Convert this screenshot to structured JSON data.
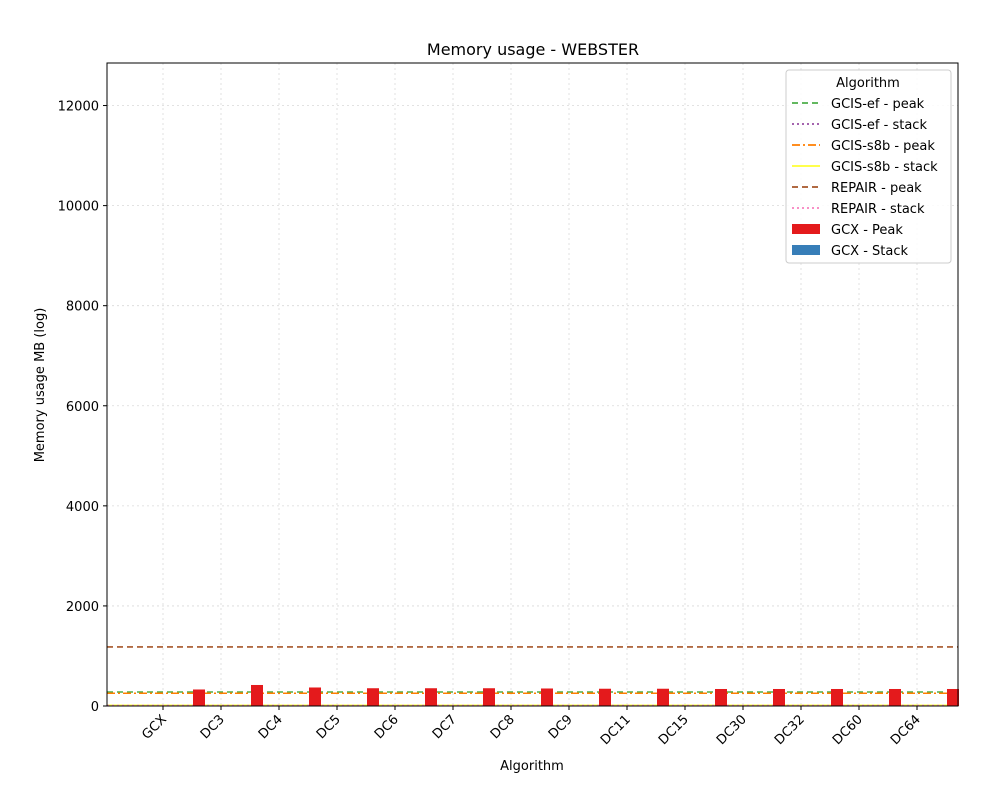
{
  "chart_data": {
    "type": "bar",
    "title": "Memory usage -  WEBSTER",
    "xlabel": "Algorithm",
    "ylabel": "Memory usage MB (log)",
    "ylim": [
      0,
      12850
    ],
    "yticks": [
      0,
      2000,
      4000,
      6000,
      8000,
      10000,
      12000
    ],
    "grid": true,
    "categories": [
      "GCX",
      "DC3",
      "DC4",
      "DC5",
      "DC6",
      "DC7",
      "DC8",
      "DC9",
      "DC11",
      "DC15",
      "DC30",
      "DC32",
      "DC60",
      "DC64"
    ],
    "series": [
      {
        "name": "GCX - Peak",
        "values": [
          330,
          420,
          370,
          355,
          355,
          355,
          350,
          345,
          345,
          340,
          340,
          340,
          340,
          340
        ],
        "color": "#e41a1c"
      },
      {
        "name": "GCX - Stack",
        "values": [
          0,
          0,
          0,
          0,
          0,
          0,
          0,
          0,
          0,
          0,
          0,
          0,
          0,
          0
        ],
        "color": "#377eb8"
      }
    ],
    "reference_lines": [
      {
        "name": "GCIS-ef  - peak",
        "value": 280,
        "color": "#4daf4a",
        "dash": "dashed"
      },
      {
        "name": "GCIS-ef  - stack",
        "value": 5,
        "color": "#984ea3",
        "dash": "dotted"
      },
      {
        "name": "GCIS-s8b  - peak",
        "value": 255,
        "color": "#ff7f00",
        "dash": "dashdot"
      },
      {
        "name": "GCIS-s8b - stack",
        "value": 15,
        "color": "#ffff33",
        "dash": "solid"
      },
      {
        "name": "REPAIR  - peak",
        "value": 1180,
        "color": "#a65628",
        "dash": "dashed"
      },
      {
        "name": "REPAIR - stack",
        "value": 8,
        "color": "#f781bf",
        "dash": "dotted"
      }
    ],
    "legend": {
      "title": "Algorithm",
      "placement": "top-right"
    }
  }
}
